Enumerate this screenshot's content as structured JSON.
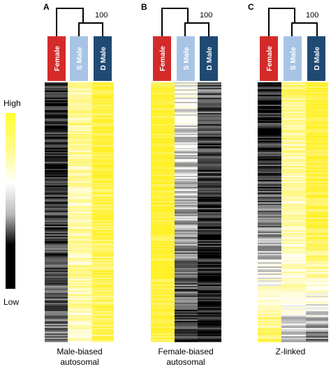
{
  "legend": {
    "high_label": "High",
    "low_label": "Low",
    "colors": [
      "#ffff33",
      "#ffffff",
      "#000000"
    ]
  },
  "colors": {
    "female_box": "#d42a2a",
    "s_male_box": "#a8c4e4",
    "d_male_box": "#1f4a74",
    "yellow": "#f8f02a"
  },
  "panels": [
    {
      "letter": "A",
      "bootstrap": "100",
      "caption_line1": "Male-biased",
      "caption_line2": "autosomal",
      "groups": [
        "Female",
        "S Male",
        "D Male"
      ],
      "column_trends": [
        [
          -0.85,
          -0.85,
          -0.8,
          -0.75,
          -0.65,
          -0.55
        ],
        [
          0.5,
          0.45,
          0.4,
          0.4,
          0.4,
          0.35
        ],
        [
          0.95,
          0.9,
          0.85,
          0.8,
          0.75,
          0.7
        ]
      ]
    },
    {
      "letter": "B",
      "bootstrap": "100",
      "caption_line1": "Female-biased",
      "caption_line2": "autosomal",
      "groups": [
        "Female",
        "S Male",
        "D Male"
      ],
      "column_trends": [
        [
          0.95,
          0.95,
          0.95,
          0.95,
          0.95,
          0.9
        ],
        [
          0.05,
          -0.1,
          -0.25,
          -0.4,
          -0.6,
          -0.85
        ],
        [
          -0.6,
          -0.7,
          -0.8,
          -0.85,
          -0.9,
          -0.9
        ]
      ]
    },
    {
      "letter": "C",
      "bootstrap": "100",
      "caption_line1": "Z-linked",
      "caption_line2": "",
      "groups": [
        "Female",
        "S Male",
        "D Male"
      ],
      "column_trends": [
        [
          -0.9,
          -0.85,
          -0.7,
          -0.4,
          0.2,
          0.7
        ],
        [
          0.6,
          0.5,
          0.4,
          0.3,
          0.2,
          -0.3
        ],
        [
          0.95,
          0.95,
          0.9,
          0.75,
          0.2,
          -0.5
        ]
      ]
    }
  ]
}
